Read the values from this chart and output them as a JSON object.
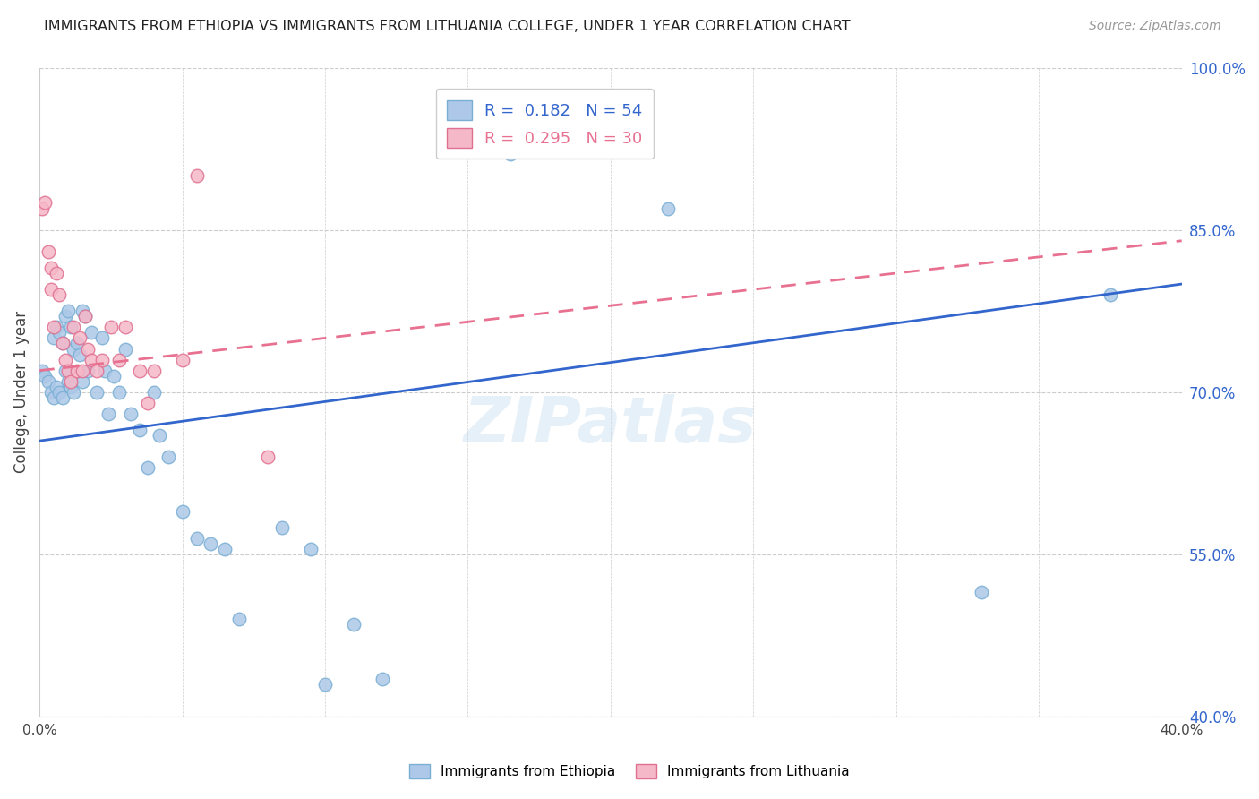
{
  "title": "IMMIGRANTS FROM ETHIOPIA VS IMMIGRANTS FROM LITHUANIA COLLEGE, UNDER 1 YEAR CORRELATION CHART",
  "source": "Source: ZipAtlas.com",
  "ylabel": "College, Under 1 year",
  "xlim": [
    0.0,
    0.4
  ],
  "ylim": [
    0.4,
    1.0
  ],
  "xtick_labels": [
    "0.0%",
    "",
    "",
    "",
    "",
    "",
    "",
    "",
    "40.0%"
  ],
  "yticks_right": [
    1.0,
    0.85,
    0.7,
    0.55,
    0.4
  ],
  "ytick_labels_right": [
    "100.0%",
    "85.0%",
    "70.0%",
    "55.0%",
    "40.0%"
  ],
  "grid_color": "#cccccc",
  "background_color": "#ffffff",
  "ethiopia_color": "#adc8e8",
  "ethiopia_edge": "#7aafd4",
  "lithuania_color": "#f5b8c8",
  "lithuania_edge": "#e07090",
  "ethiopia_R": 0.182,
  "ethiopia_N": 54,
  "lithuania_R": 0.295,
  "lithuania_N": 30,
  "trend_blue": "#3366cc",
  "trend_pink": "#e87090",
  "watermark": "ZIPatlas",
  "legend_ethiopia": "Immigrants from Ethiopia",
  "legend_lithuania": "Immigrants from Lithuania",
  "ethiopia_x": [
    0.001,
    0.002,
    0.003,
    0.004,
    0.005,
    0.005,
    0.006,
    0.006,
    0.007,
    0.007,
    0.008,
    0.008,
    0.009,
    0.009,
    0.01,
    0.01,
    0.011,
    0.011,
    0.012,
    0.012,
    0.013,
    0.014,
    0.015,
    0.015,
    0.016,
    0.017,
    0.018,
    0.02,
    0.022,
    0.023,
    0.024,
    0.026,
    0.028,
    0.03,
    0.032,
    0.035,
    0.038,
    0.04,
    0.042,
    0.045,
    0.05,
    0.055,
    0.06,
    0.065,
    0.07,
    0.085,
    0.095,
    0.1,
    0.11,
    0.12,
    0.165,
    0.22,
    0.33,
    0.375
  ],
  "ethiopia_y": [
    0.72,
    0.715,
    0.71,
    0.7,
    0.75,
    0.695,
    0.76,
    0.705,
    0.755,
    0.7,
    0.745,
    0.695,
    0.77,
    0.72,
    0.775,
    0.71,
    0.76,
    0.705,
    0.74,
    0.7,
    0.745,
    0.735,
    0.775,
    0.71,
    0.77,
    0.72,
    0.755,
    0.7,
    0.75,
    0.72,
    0.68,
    0.715,
    0.7,
    0.74,
    0.68,
    0.665,
    0.63,
    0.7,
    0.66,
    0.64,
    0.59,
    0.565,
    0.56,
    0.555,
    0.49,
    0.575,
    0.555,
    0.43,
    0.485,
    0.435,
    0.92,
    0.87,
    0.515,
    0.79
  ],
  "lithuania_x": [
    0.001,
    0.002,
    0.003,
    0.004,
    0.004,
    0.005,
    0.006,
    0.007,
    0.008,
    0.009,
    0.01,
    0.011,
    0.012,
    0.013,
    0.014,
    0.015,
    0.016,
    0.017,
    0.018,
    0.02,
    0.022,
    0.025,
    0.028,
    0.03,
    0.035,
    0.038,
    0.04,
    0.05,
    0.055,
    0.08
  ],
  "lithuania_y": [
    0.87,
    0.875,
    0.83,
    0.815,
    0.795,
    0.76,
    0.81,
    0.79,
    0.745,
    0.73,
    0.72,
    0.71,
    0.76,
    0.72,
    0.75,
    0.72,
    0.77,
    0.74,
    0.73,
    0.72,
    0.73,
    0.76,
    0.73,
    0.76,
    0.72,
    0.69,
    0.72,
    0.73,
    0.9,
    0.64
  ],
  "eth_trend_x": [
    0.0,
    0.4
  ],
  "eth_trend_y": [
    0.655,
    0.8
  ],
  "lit_trend_x": [
    0.0,
    0.4
  ],
  "lit_trend_y": [
    0.72,
    0.84
  ]
}
